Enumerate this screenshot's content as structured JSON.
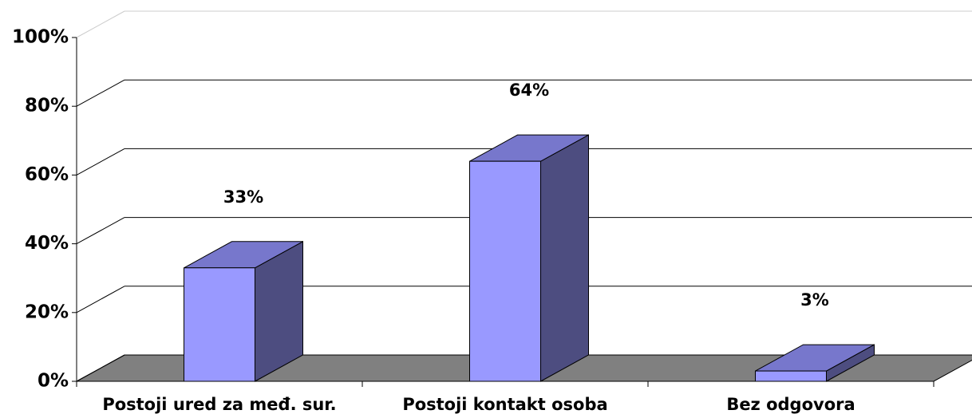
{
  "chart_data": {
    "type": "bar3d",
    "categories": [
      "Postoji ured za međ. sur.",
      "Postoji kontakt osoba",
      "Bez odgovora"
    ],
    "values": [
      33,
      64,
      3
    ],
    "value_labels": [
      "33%",
      "64%",
      "3%"
    ],
    "ylim": [
      0,
      100
    ],
    "yticks": [
      {
        "value": 0,
        "label": "0%"
      },
      {
        "value": 20,
        "label": "20%"
      },
      {
        "value": 40,
        "label": "40%"
      },
      {
        "value": 60,
        "label": "60%"
      },
      {
        "value": 80,
        "label": "80%"
      },
      {
        "value": 100,
        "label": "100%"
      }
    ],
    "color": "#9999ff",
    "grid": true
  }
}
